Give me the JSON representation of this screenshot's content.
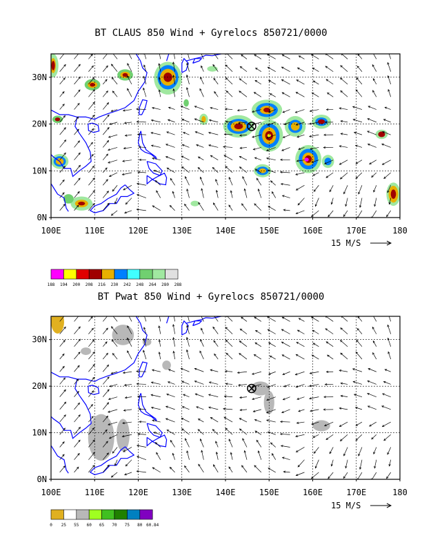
{
  "panels": [
    {
      "title": "BT CLAUS 850 Wind + Gyrelocs 850721/0000",
      "x_ticks": [
        "100E",
        "110E",
        "120E",
        "130E",
        "140E",
        "150E",
        "160E",
        "170E",
        "180"
      ],
      "y_ticks": [
        "0N",
        "10N",
        "20N",
        "30N"
      ],
      "scale_label": "15 M/S",
      "legend": {
        "labels": [
          "188",
          "194",
          "200",
          "208",
          "216",
          "230",
          "242",
          "248",
          "264",
          "280",
          "288"
        ],
        "colors": [
          "#ff00ff",
          "#ffff00",
          "#e00000",
          "#a00000",
          "#e8b000",
          "#0080ff",
          "#40ffff",
          "#70d070",
          "#a0e8a0",
          "#e0e0e0"
        ]
      }
    },
    {
      "title": "BT Pwat 850 Wind + Gyrelocs 850721/0000",
      "x_ticks": [
        "100E",
        "110E",
        "120E",
        "130E",
        "140E",
        "150E",
        "160E",
        "170E",
        "180"
      ],
      "y_ticks": [
        "0N",
        "10N",
        "20N",
        "30N"
      ],
      "scale_label": "15 M/S",
      "legend": {
        "labels": [
          "0",
          "25",
          "55",
          "60",
          "65",
          "70",
          "75",
          "80",
          "60.84"
        ],
        "colors": [
          "#e0b020",
          "#ffffff",
          "#b8b8b8",
          "#a0ff20",
          "#40c020",
          "#208000",
          "#0080c0",
          "#8000c0"
        ]
      }
    }
  ],
  "gyre_location": {
    "lon": 146,
    "lat": 19.5
  },
  "colors": {
    "coast": "#0000ff",
    "frame": "#000000"
  }
}
